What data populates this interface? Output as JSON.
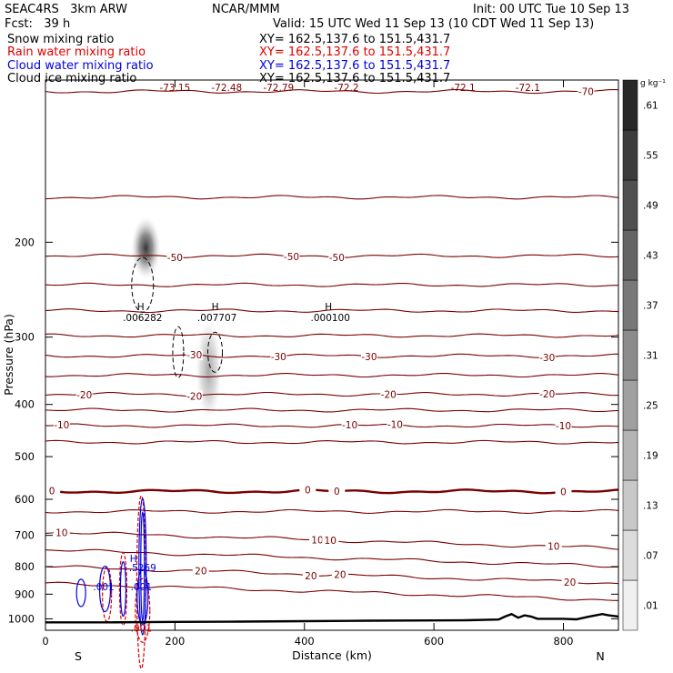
{
  "header": {
    "model": "SEAC4RS   3km ARW",
    "producer": "NCAR/MMM",
    "init": "Init: 00 UTC Tue 10 Sep 13",
    "fcst": "Fcst:   39 h",
    "valid": "Valid: 15 UTC Wed 11 Sep 13 (10 CDT Wed 11 Sep 13)",
    "fields": [
      {
        "label": "Snow mixing ratio",
        "xy": "XY= 162.5,137.6 to 151.5,431.7",
        "color": "#000000"
      },
      {
        "label": "Rain water mixing ratio",
        "xy": "XY= 162.5,137.6 to 151.5,431.7",
        "color": "#e00000"
      },
      {
        "label": "Cloud water mixing ratio",
        "xy": "XY= 162.5,137.6 to 151.5,431.7",
        "color": "#0000e0"
      },
      {
        "label": "Cloud ice mixing ratio",
        "xy": "XY= 162.5,137.6 to 151.5,431.7",
        "color": "#000000"
      }
    ]
  },
  "chart_data": {
    "type": "cross-section",
    "xlabel": "Distance (km)",
    "ylabel": "Pressure (hPa)",
    "xlim": [
      0,
      885
    ],
    "ylim": [
      1050,
      100
    ],
    "x_ticks": [
      0,
      200,
      400,
      600,
      800
    ],
    "y_ticks": [
      200,
      300,
      400,
      500,
      600,
      700,
      800,
      900,
      1000
    ],
    "y_tick_labels": [
      "200",
      "300",
      "400",
      "500",
      "600",
      "700",
      "800",
      "900",
      "1000"
    ],
    "x_tick_labels": [
      "0",
      "200",
      "400",
      "600",
      "800"
    ],
    "direction_labels": {
      "left": "S",
      "right": "N"
    },
    "temperature_isotherms": {
      "units": "°C",
      "interval": 5,
      "color": "#7a0000",
      "zero_color": "#7a0000",
      "levels": [
        {
          "T": -70,
          "p": 105,
          "label": "-70",
          "label_x": [
            835
          ]
        },
        {
          "T": -60,
          "p": 165,
          "label": "",
          "label_x": []
        },
        {
          "T": -50,
          "p": 212,
          "label": "-50",
          "label_x": [
            200,
            380,
            450
          ]
        },
        {
          "T": -45,
          "p": 240,
          "label": "",
          "label_x": []
        },
        {
          "T": -40,
          "p": 268,
          "label": "",
          "label_x": []
        },
        {
          "T": -35,
          "p": 298,
          "label": "",
          "label_x": []
        },
        {
          "T": -30,
          "p": 325,
          "label": "-30",
          "label_x": [
            230,
            360,
            500,
            775
          ]
        },
        {
          "T": -25,
          "p": 353,
          "label": "",
          "label_x": []
        },
        {
          "T": -20,
          "p": 383,
          "label": "-20",
          "label_x": [
            60,
            230,
            530,
            775
          ]
        },
        {
          "T": -15,
          "p": 410,
          "label": "",
          "label_x": []
        },
        {
          "T": -10,
          "p": 438,
          "label": "-10",
          "label_x": [
            25,
            470,
            540,
            800
          ]
        },
        {
          "T": -5,
          "p": 470,
          "label": "",
          "label_x": []
        },
        {
          "T": 0,
          "p": 580,
          "label": "0",
          "label_x": [
            10,
            405,
            450,
            800
          ],
          "thick": true
        },
        {
          "T": 5,
          "p": 632,
          "label": "",
          "label_x": []
        },
        {
          "T": 10,
          "p": 690,
          "label": "10",
          "label_x": [
            25,
            420,
            440,
            785
          ]
        },
        {
          "T": 15,
          "p": 745,
          "label": "",
          "label_x": []
        },
        {
          "T": 20,
          "p": 800,
          "label": "20",
          "label_x": [
            240,
            410,
            455,
            810
          ]
        },
        {
          "T": 25,
          "p": 860,
          "label": "",
          "label_x": []
        }
      ],
      "top_labels": [
        {
          "x": 200,
          "label": "-73.15"
        },
        {
          "x": 280,
          "label": "-72.48"
        },
        {
          "x": 360,
          "label": "-72.79"
        },
        {
          "x": 465,
          "label": "-72.2"
        },
        {
          "x": 645,
          "label": "-72.1"
        },
        {
          "x": 745,
          "label": "-72.1"
        }
      ]
    },
    "snow_mixing_ratio": {
      "units": "g kg-1",
      "maxima": [
        {
          "x": 150,
          "p": 278,
          "label": ".006282"
        },
        {
          "x": 265,
          "p": 278,
          "label": ".007707"
        },
        {
          "x": 440,
          "p": 278,
          "label": ".000100"
        }
      ]
    },
    "cloud_ice_shading": {
      "units": "g kg-1",
      "colorbar_levels": [
        ".01",
        ".07",
        ".13",
        ".19",
        ".25",
        ".31",
        ".37",
        ".43",
        ".49",
        ".55",
        ".61"
      ],
      "colorbar_unit_label": "g kg⁻¹",
      "blobs": [
        {
          "x": 155,
          "p": 205,
          "intensity": 0.7
        },
        {
          "x": 252,
          "p": 345,
          "intensity": 0.35
        }
      ]
    },
    "rain_water_mixing_ratio": {
      "units": "g kg-1",
      "color": "#e00000",
      "maxima": [
        {
          "x": 148,
          "p": 875,
          "label": ""
        },
        {
          "x": 148,
          "p": 1000,
          "label": ".001"
        }
      ]
    },
    "cloud_water_mixing_ratio": {
      "units": "g kg-1",
      "color": "#0000e0",
      "maxima": [
        {
          "x": 150,
          "p": 815,
          "label": ".5269"
        },
        {
          "x": 90,
          "p": 885,
          "label": ".001"
        },
        {
          "x": 148,
          "p": 885,
          "label": ".001"
        }
      ]
    },
    "terrain": {
      "description_only": false,
      "x": [
        0,
        100,
        200,
        300,
        400,
        500,
        600,
        650,
        700,
        710,
        720,
        730,
        740,
        750,
        760,
        780,
        800,
        820,
        840,
        860,
        870,
        885
      ],
      "p": [
        1015,
        1015,
        1013,
        1012,
        1010,
        1008,
        1007,
        1006,
        1003,
        990,
        980,
        995,
        985,
        990,
        1000,
        1000,
        1000,
        1002,
        990,
        980,
        985,
        990
      ]
    }
  }
}
